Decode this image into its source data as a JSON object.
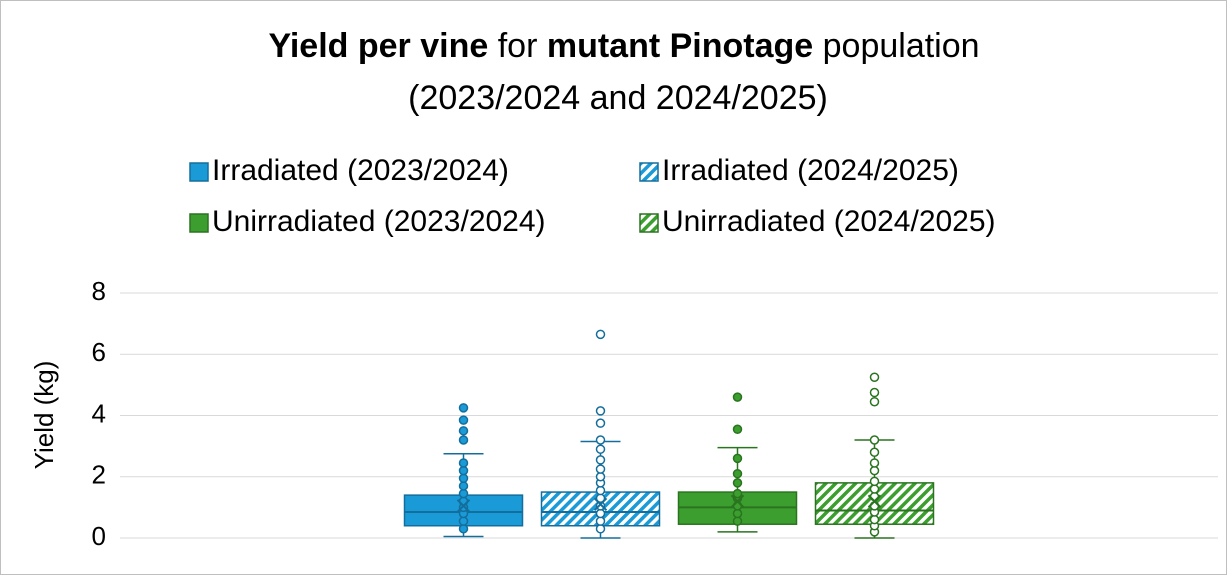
{
  "chart_data": {
    "type": "box",
    "title": [
      {
        "text": "Yield per vine",
        "bold": true
      },
      {
        "text": " for ",
        "bold": false
      },
      {
        "text": "mutant Pinotage",
        "bold": true
      },
      {
        "text": " population",
        "bold": false
      }
    ],
    "subtitle": "(2023/2024 and 2024/2025)",
    "y_label": "Yield (kg)",
    "ylim": [
      0,
      8
    ],
    "yticks": [
      0,
      2,
      4,
      6,
      8
    ],
    "grid": true,
    "legend": "top",
    "series": [
      {
        "name": "Irradiated (2023/2024)",
        "color": "#1a9ad6",
        "edge": "#146e9c",
        "pattern": "solid",
        "min": 0.05,
        "q1": 0.4,
        "median": 0.85,
        "q3": 1.4,
        "max": 2.75,
        "mean": 1.05,
        "points": [
          0.3,
          0.55,
          0.8,
          1.0,
          1.2,
          1.45,
          1.7,
          1.95,
          2.2,
          2.45,
          3.2,
          3.5,
          3.85,
          4.25
        ]
      },
      {
        "name": "Irradiated (2024/2025)",
        "color": "#1a9ad6",
        "edge": "#146e9c",
        "pattern": "hatch",
        "min": 0.0,
        "q1": 0.4,
        "median": 0.85,
        "q3": 1.5,
        "max": 3.15,
        "mean": 1.1,
        "points": [
          0.3,
          0.55,
          0.8,
          1.05,
          1.3,
          1.55,
          1.8,
          2.0,
          2.25,
          2.55,
          2.9,
          3.2,
          3.75,
          4.15,
          6.65
        ]
      },
      {
        "name": "Unirradiated (2023/2024)",
        "color": "#3c9e2e",
        "edge": "#2a7420",
        "pattern": "solid",
        "min": 0.2,
        "q1": 0.45,
        "median": 1.0,
        "q3": 1.5,
        "max": 2.95,
        "mean": 1.2,
        "points": [
          0.55,
          0.8,
          1.05,
          1.3,
          1.45,
          1.8,
          2.1,
          2.6,
          3.55,
          4.6
        ]
      },
      {
        "name": "Unirradiated (2024/2025)",
        "color": "#3c9e2e",
        "edge": "#2a7420",
        "pattern": "hatch",
        "min": 0.0,
        "q1": 0.45,
        "median": 0.9,
        "q3": 1.8,
        "max": 3.2,
        "mean": 1.2,
        "points": [
          0.2,
          0.4,
          0.6,
          0.85,
          1.05,
          1.35,
          1.6,
          1.85,
          2.2,
          2.45,
          2.8,
          3.2,
          4.45,
          4.75,
          5.25
        ]
      }
    ]
  }
}
